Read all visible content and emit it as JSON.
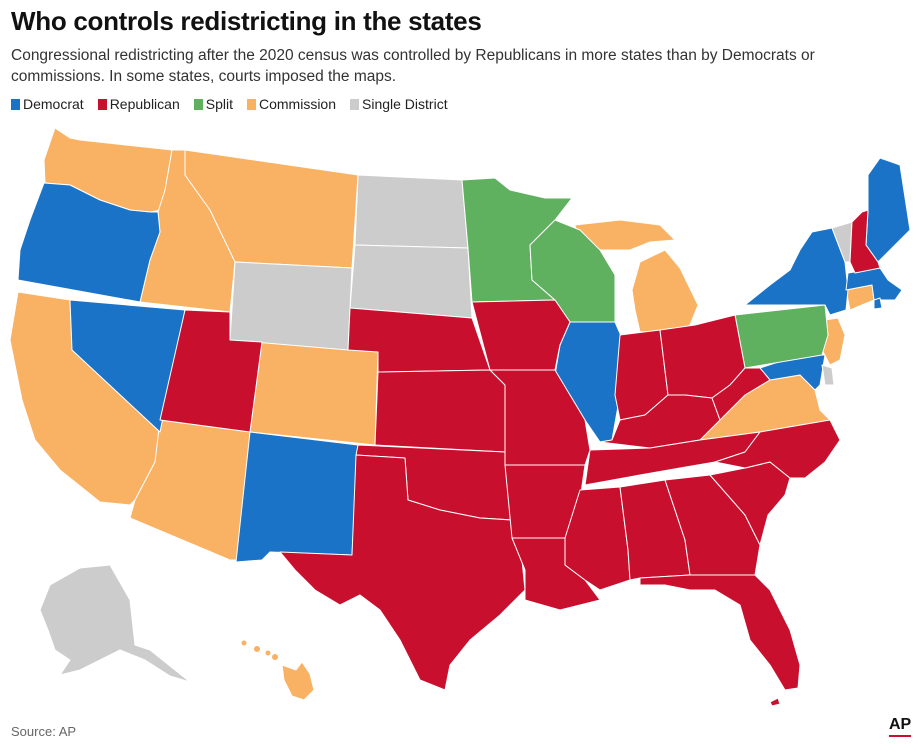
{
  "title": "Who controls redistricting in the states",
  "subtitle": "Congressional redistricting after the 2020 census was controlled by Republicans in more states than by Democrats or commissions. In some states, courts imposed the maps.",
  "legend": [
    {
      "label": "Democrat",
      "color": "#1a73c7"
    },
    {
      "label": "Republican",
      "color": "#c8102e"
    },
    {
      "label": "Split",
      "color": "#5fb05f"
    },
    {
      "label": "Commission",
      "color": "#f9b163"
    },
    {
      "label": "Single District",
      "color": "#cccccc"
    }
  ],
  "categories": {
    "Democrat": [
      "OR",
      "NV",
      "NM",
      "IL",
      "NY",
      "MA",
      "MD",
      "ME",
      "RI"
    ],
    "Republican": [
      "UT",
      "NE",
      "KS",
      "OK",
      "TX",
      "IA",
      "MO",
      "AR",
      "LA",
      "IN",
      "OH",
      "KY",
      "WV",
      "TN",
      "MS",
      "AL",
      "GA",
      "FL",
      "SC",
      "NC",
      "NH"
    ],
    "Split": [
      "MN",
      "WI",
      "PA"
    ],
    "Commission": [
      "WA",
      "ID",
      "MT",
      "CA",
      "AZ",
      "CO",
      "MI",
      "VA",
      "NJ",
      "CT",
      "HI"
    ],
    "Single District": [
      "ND",
      "SD",
      "WY",
      "AK",
      "VT",
      "DE"
    ]
  },
  "source": "Source: AP",
  "logo": "AP"
}
